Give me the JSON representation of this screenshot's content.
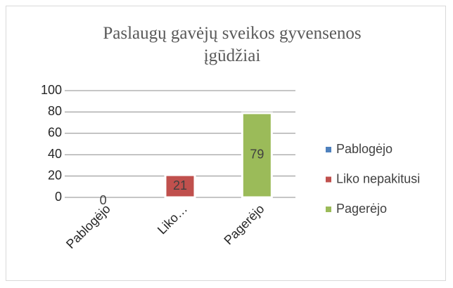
{
  "chart_data": {
    "type": "bar",
    "title": "Paslaugų gavėjų sveikos gyvensenos įgūdžiai",
    "categories": [
      "Pablogėjo",
      "Liko…",
      "Pagerėjo"
    ],
    "series": [
      {
        "name": "Pablogėjo",
        "color": "#4f81bd",
        "values": [
          0,
          null,
          null
        ]
      },
      {
        "name": "Liko nepakitusi",
        "color": "#c0504d",
        "values": [
          null,
          21,
          null
        ]
      },
      {
        "name": "Pagerėjo",
        "color": "#9bbb59",
        "values": [
          null,
          null,
          79
        ]
      }
    ],
    "ylim": [
      0,
      100
    ],
    "yticks": [
      0,
      20,
      40,
      60,
      80,
      100
    ],
    "grid": true,
    "legend": "right"
  }
}
